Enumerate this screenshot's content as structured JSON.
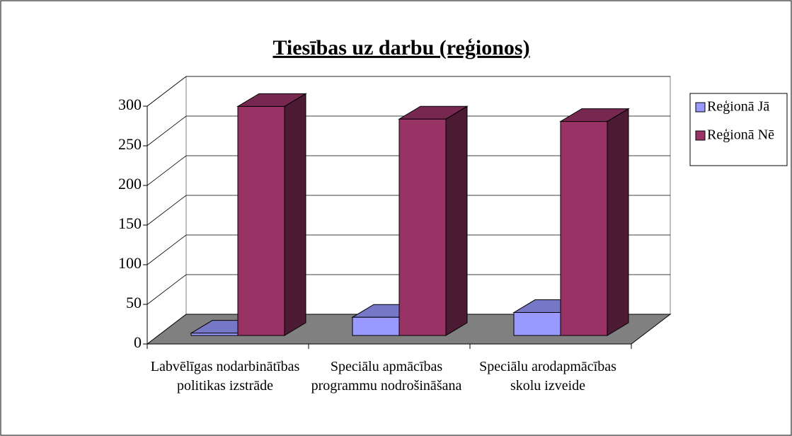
{
  "chart_data": {
    "type": "bar3d",
    "title": "Tiesības uz darbu (reģionos)",
    "categories": [
      "Labvēlīgas nodarbinātības politikas izstrāde",
      "Speciālu apmācības programmu nodrošināšana",
      "Speciālu arodapmācības skolu izveide"
    ],
    "series": [
      {
        "name": "Reģionā Jā",
        "color": "#9999ff",
        "values": [
          3,
          23,
          29
        ]
      },
      {
        "name": "Reģionā Nē",
        "color": "#993366",
        "values": [
          289,
          273,
          270
        ]
      }
    ],
    "ylim": [
      0,
      300
    ],
    "yticks": [
      0,
      50,
      100,
      150,
      200,
      250,
      300
    ],
    "grid": true,
    "legend": "right"
  }
}
